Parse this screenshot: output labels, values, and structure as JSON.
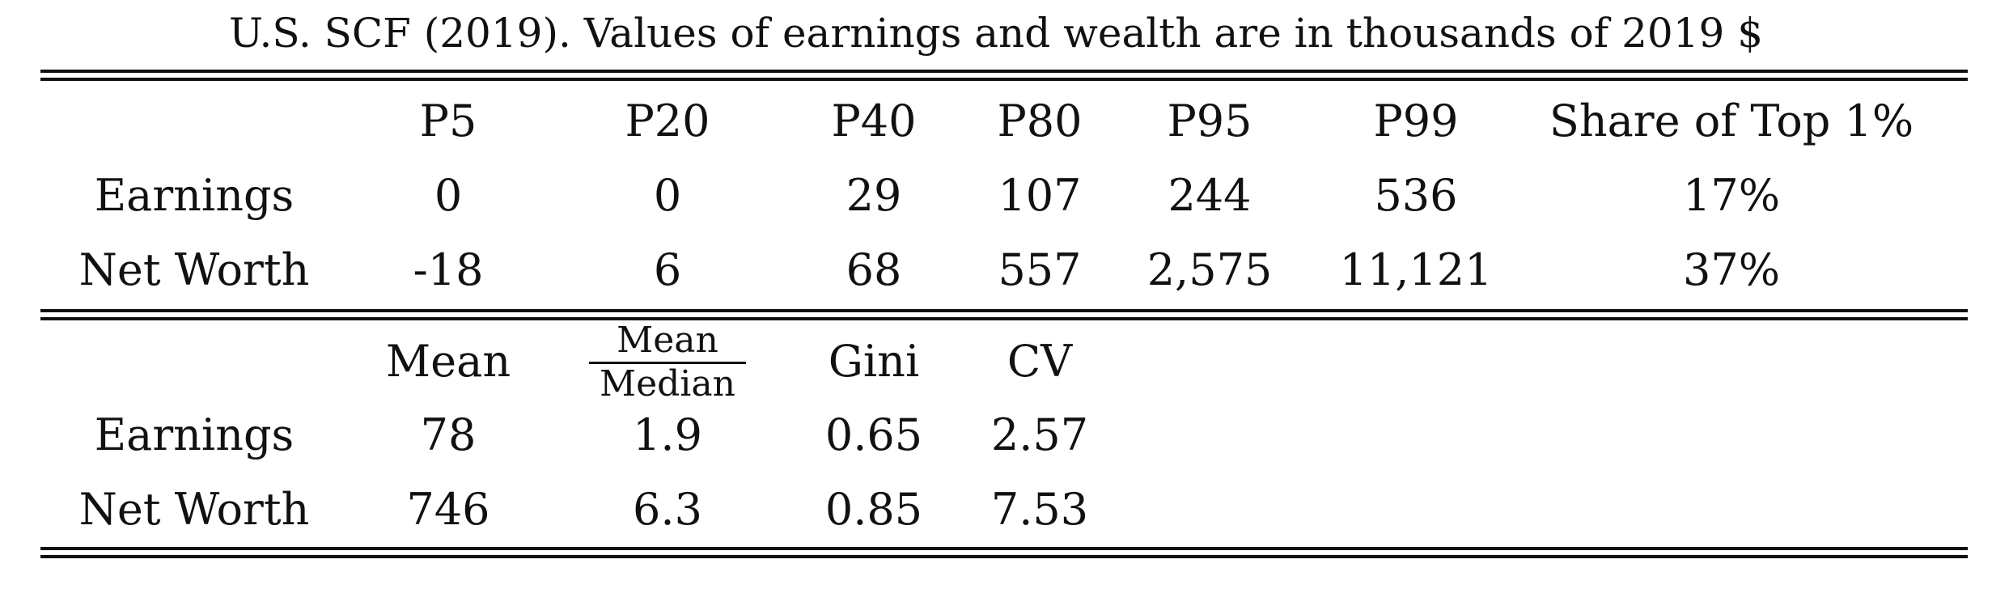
{
  "caption": "U.S. SCF (2019). Values of earnings and wealth are in thousands of 2019 $",
  "panel_top": {
    "headers": [
      "P5",
      "P20",
      "P40",
      "P80",
      "P95",
      "P99",
      "Share of Top 1%"
    ],
    "rows": [
      {
        "label": "Earnings",
        "values": [
          "0",
          "0",
          "29",
          "107",
          "244",
          "536",
          "17%"
        ]
      },
      {
        "label": "Net Worth",
        "values": [
          "-18",
          "6",
          "68",
          "557",
          "2,575",
          "11,121",
          "37%"
        ]
      }
    ]
  },
  "panel_bottom": {
    "headers": {
      "mean": "Mean",
      "ratio_numerator": "Mean",
      "ratio_denominator": "Median",
      "gini": "Gini",
      "cv": "CV"
    },
    "rows": [
      {
        "label": "Earnings",
        "values": [
          "78",
          "1.9",
          "0.65",
          "2.57"
        ]
      },
      {
        "label": "Net Worth",
        "values": [
          "746",
          "6.3",
          "0.85",
          "7.53"
        ]
      }
    ]
  }
}
